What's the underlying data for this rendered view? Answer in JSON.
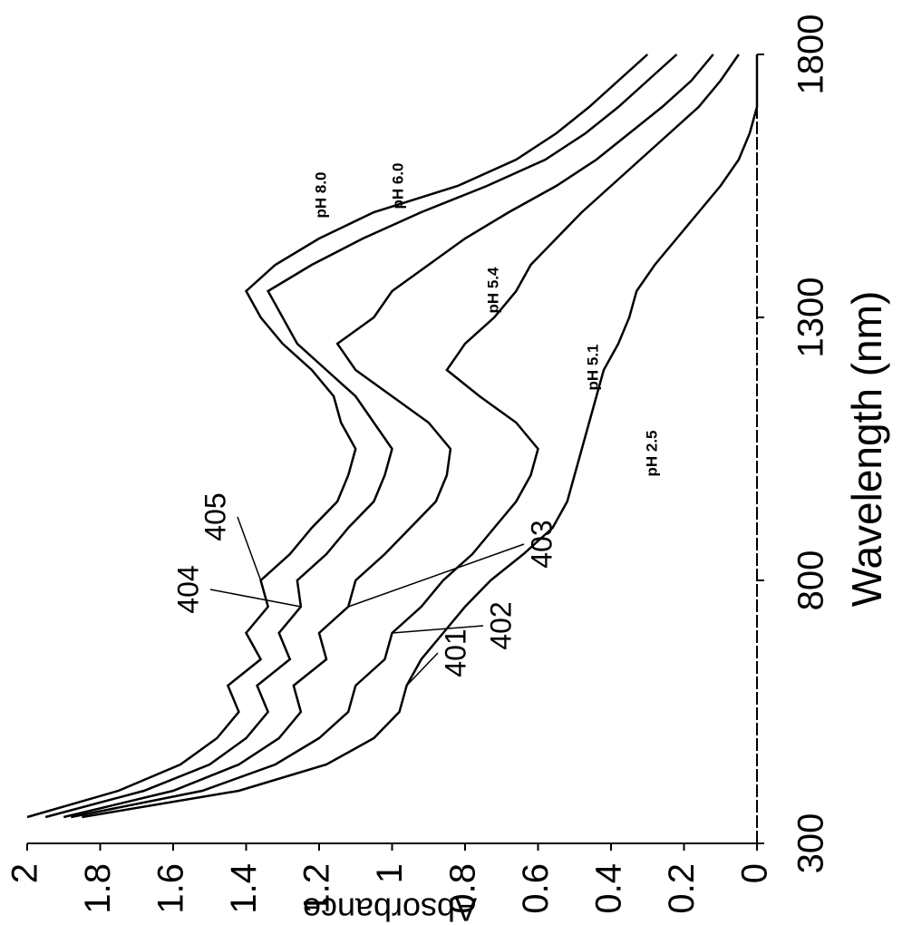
{
  "chart_data": {
    "type": "line",
    "x_label": "Wavelength (nm)",
    "y_label": "Absorbance",
    "x": [
      350,
      400,
      450,
      500,
      550,
      600,
      650,
      700,
      750,
      800,
      850,
      900,
      950,
      1000,
      1050,
      1100,
      1150,
      1200,
      1250,
      1300,
      1350,
      1400,
      1450,
      1500,
      1550,
      1600,
      1650,
      1700,
      1750,
      1800
    ],
    "series": [
      {
        "name": "401",
        "color": "#000000",
        "values": [
          1.85,
          1.42,
          1.18,
          1.05,
          0.98,
          0.96,
          0.92,
          0.86,
          0.8,
          0.73,
          0.64,
          0.56,
          0.52,
          0.5,
          0.48,
          0.46,
          0.44,
          0.42,
          0.38,
          0.35,
          0.33,
          0.28,
          0.22,
          0.16,
          0.1,
          0.05,
          0.02,
          0,
          0,
          0
        ]
      },
      {
        "name": "402",
        "color": "#000000",
        "values": [
          1.88,
          1.52,
          1.32,
          1.2,
          1.12,
          1.1,
          1.02,
          1.0,
          0.92,
          0.86,
          0.78,
          0.72,
          0.66,
          0.62,
          0.6,
          0.66,
          0.76,
          0.85,
          0.8,
          0.72,
          0.66,
          0.62,
          0.55,
          0.48,
          0.4,
          0.32,
          0.24,
          0.16,
          0.1,
          0.05
        ]
      },
      {
        "name": "403",
        "color": "#000000",
        "values": [
          1.9,
          1.6,
          1.42,
          1.31,
          1.25,
          1.27,
          1.18,
          1.2,
          1.12,
          1.1,
          1.02,
          0.95,
          0.88,
          0.85,
          0.84,
          0.9,
          1.0,
          1.1,
          1.15,
          1.05,
          1.0,
          0.9,
          0.8,
          0.68,
          0.55,
          0.44,
          0.35,
          0.26,
          0.18,
          0.12
        ]
      },
      {
        "name": "404",
        "color": "#000000",
        "values": [
          1.95,
          1.68,
          1.5,
          1.4,
          1.34,
          1.37,
          1.28,
          1.31,
          1.25,
          1.26,
          1.18,
          1.12,
          1.05,
          1.02,
          1.0,
          1.05,
          1.1,
          1.18,
          1.26,
          1.3,
          1.34,
          1.22,
          1.08,
          0.92,
          0.74,
          0.58,
          0.47,
          0.38,
          0.3,
          0.22
        ]
      },
      {
        "name": "405",
        "color": "#000000",
        "values": [
          2.0,
          1.75,
          1.58,
          1.48,
          1.42,
          1.45,
          1.36,
          1.4,
          1.34,
          1.36,
          1.28,
          1.22,
          1.15,
          1.12,
          1.1,
          1.14,
          1.16,
          1.22,
          1.3,
          1.36,
          1.4,
          1.32,
          1.2,
          1.05,
          0.82,
          0.66,
          0.55,
          0.46,
          0.38,
          0.3
        ]
      }
    ],
    "annotations": [
      "pH 8.0",
      "pH 6.0",
      "pH 5.4",
      "pH 5.1",
      "pH 2.5"
    ],
    "xlim": [
      300,
      1800
    ],
    "xticks": [
      300,
      800,
      1300,
      1800
    ],
    "ylim": [
      0,
      2
    ],
    "yticks": [
      0,
      0.2,
      0.4,
      0.6,
      0.8,
      1,
      1.2,
      1.4,
      1.6,
      1.8,
      2
    ],
    "grid": false
  }
}
